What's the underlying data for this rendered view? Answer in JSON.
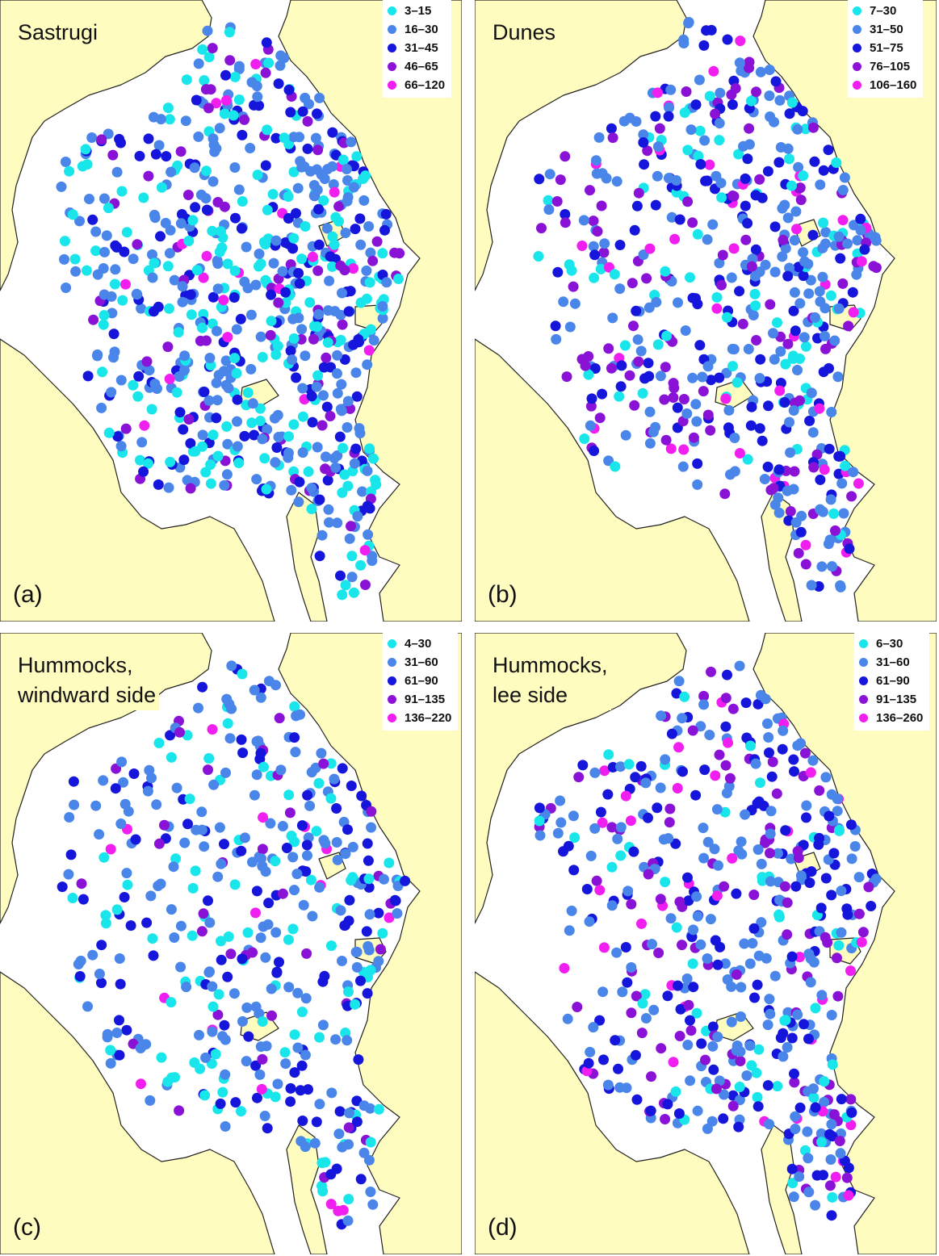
{
  "colors": {
    "land": "#fffcbf",
    "coast": "#222222",
    "ice": "#ffffff",
    "class1": "#18e6ea",
    "class2": "#4a86ea",
    "class3": "#1515dc",
    "class4": "#8a12d6",
    "class5": "#f01ff0"
  },
  "panels": [
    {
      "title": "Sastrugi",
      "letter": "(a)",
      "legend": [
        "3–15",
        "16–30",
        "31–45",
        "46–65",
        "66–120"
      ]
    },
    {
      "title": "Dunes",
      "letter": "(b)",
      "legend": [
        "7–30",
        "31–50",
        "51–75",
        "76–105",
        "106–160"
      ]
    },
    {
      "title": "Hummocks,\nwindward side",
      "letter": "(c)",
      "legend": [
        "4–30",
        "31–60",
        "61–90",
        "91–135",
        "136–220"
      ]
    },
    {
      "title": "Hummocks,\nlee side",
      "letter": "(d)",
      "legend": [
        "6–30",
        "31–60",
        "61–90",
        "91–135",
        "136–260"
      ]
    }
  ]
}
